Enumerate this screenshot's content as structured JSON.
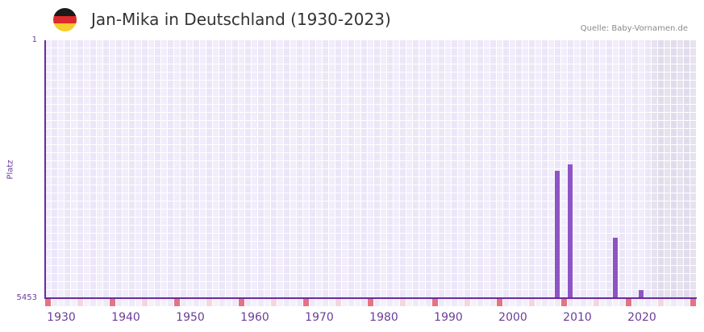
{
  "header": {
    "title": "Jan-Mika in Deutschland (1930-2023)",
    "source": "Quelle: Baby-Vornamen.de",
    "flag_icon": "germany-flag-icon",
    "flag_colors": [
      "#1a1a1a",
      "#dd2a2a",
      "#f8cc2c"
    ]
  },
  "colors": {
    "bar": "#8e54c6",
    "axis": "#6a2b9e",
    "grid_a": "#f1edfb",
    "grid_b": "#ece6f8",
    "grid_shaded_a": "#e6e2ef",
    "grid_shaded_b": "#e1dcec",
    "marker_decade": "#e57380",
    "marker_half": "#f5d6de",
    "marker_other_a": "#efeaf9",
    "marker_other_b": "#f4f1fb"
  },
  "chart_data": {
    "type": "bar",
    "title": "Jan-Mika in Deutschland (1930-2023)",
    "xlabel": "",
    "ylabel": "Platz",
    "y_axis_inverted_rank": true,
    "ylim": [
      5453,
      1
    ],
    "ytick_labels": [
      "1",
      "5453"
    ],
    "xlim": [
      1928,
      2028
    ],
    "xtick_labels": [
      "1930",
      "1940",
      "1950",
      "1960",
      "1970",
      "1980",
      "1990",
      "2000",
      "2010",
      "2020"
    ],
    "shaded_from_year": 2022,
    "grid": true,
    "legend": null,
    "annotations": [
      "Quelle: Baby-Vornamen.de"
    ],
    "x": [
      2007,
      2009,
      2016,
      2020
    ],
    "values": [
      2761,
      2625,
      4175,
      5283
    ],
    "series": [
      {
        "name": "Platz",
        "x": [
          2007,
          2009,
          2016,
          2020
        ],
        "values": [
          2761,
          2625,
          4175,
          5283
        ]
      }
    ]
  },
  "axis": {
    "y_top": "1",
    "y_bottom": "5453",
    "y_title": "Platz"
  }
}
